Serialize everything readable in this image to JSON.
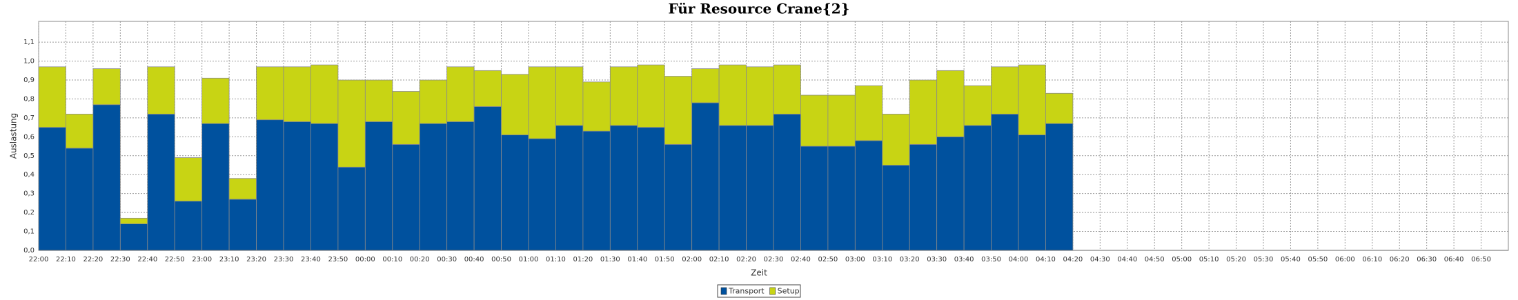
{
  "chart_data": {
    "type": "stacked_bar",
    "title": "Für Resource Crane{2}",
    "x_label": "Zeit",
    "y_label": "Auslastung",
    "categories": [
      "22:00",
      "22:10",
      "22:20",
      "22:30",
      "22:40",
      "22:50",
      "23:00",
      "23:10",
      "23:20",
      "23:30",
      "23:40",
      "23:50",
      "00:00",
      "00:10",
      "00:20",
      "00:30",
      "00:40",
      "00:50",
      "01:00",
      "01:10",
      "01:20",
      "01:30",
      "01:40",
      "01:50",
      "02:00",
      "02:10",
      "02:20",
      "02:30",
      "02:40",
      "02:50",
      "03:00",
      "03:10",
      "03:20",
      "03:30",
      "03:40",
      "03:50",
      "04:00",
      "04:10",
      "04:20",
      "04:30",
      "04:40",
      "04:50",
      "05:00",
      "05:10",
      "05:20",
      "05:30",
      "05:40",
      "05:50",
      "06:00",
      "06:10",
      "06:20",
      "06:30",
      "06:40",
      "06:50"
    ],
    "series": [
      {
        "name": "Transport",
        "color": "#00519e",
        "values": [
          0.65,
          0.54,
          0.77,
          0.14,
          0.72,
          0.26,
          0.67,
          0.27,
          0.69,
          0.68,
          0.67,
          0.44,
          0.68,
          0.56,
          0.67,
          0.68,
          0.76,
          0.61,
          0.59,
          0.66,
          0.63,
          0.66,
          0.65,
          0.56,
          0.78,
          0.66,
          0.66,
          0.72,
          0.55,
          0.55,
          0.58,
          0.45,
          0.56,
          0.6,
          0.66,
          0.72,
          0.61,
          0.67,
          null,
          null,
          null,
          null,
          null,
          null,
          null,
          null,
          null,
          null,
          null,
          null,
          null,
          null,
          null,
          null
        ]
      },
      {
        "name": "Setup",
        "color": "#c8d414",
        "values": [
          0.32,
          0.18,
          0.19,
          0.03,
          0.25,
          0.23,
          0.24,
          0.11,
          0.28,
          0.29,
          0.31,
          0.46,
          0.22,
          0.28,
          0.23,
          0.29,
          0.19,
          0.32,
          0.38,
          0.31,
          0.26,
          0.31,
          0.33,
          0.36,
          0.18,
          0.32,
          0.31,
          0.26,
          0.27,
          0.27,
          0.29,
          0.27,
          0.34,
          0.35,
          0.21,
          0.25,
          0.37,
          0.16,
          null,
          null,
          null,
          null,
          null,
          null,
          null,
          null,
          null,
          null,
          null,
          null,
          null,
          null,
          null,
          null
        ]
      }
    ],
    "ylim": [
      0,
      1.21
    ],
    "yticks": [
      {
        "value": 0,
        "label": "0,0"
      },
      {
        "value": 0.1,
        "label": "0,1"
      },
      {
        "value": 0.2,
        "label": "0,2"
      },
      {
        "value": 0.3,
        "label": "0,3"
      },
      {
        "value": 0.4,
        "label": "0,4"
      },
      {
        "value": 0.5,
        "label": "0,5"
      },
      {
        "value": 0.6,
        "label": "0,6"
      },
      {
        "value": 0.7,
        "label": "0,7"
      },
      {
        "value": 0.8,
        "label": "0,8"
      },
      {
        "value": 0.9,
        "label": "0,9"
      },
      {
        "value": 1.0,
        "label": "1,0"
      },
      {
        "value": 1.1,
        "label": "1,1"
      }
    ],
    "grid": true,
    "legend": "bottom"
  }
}
